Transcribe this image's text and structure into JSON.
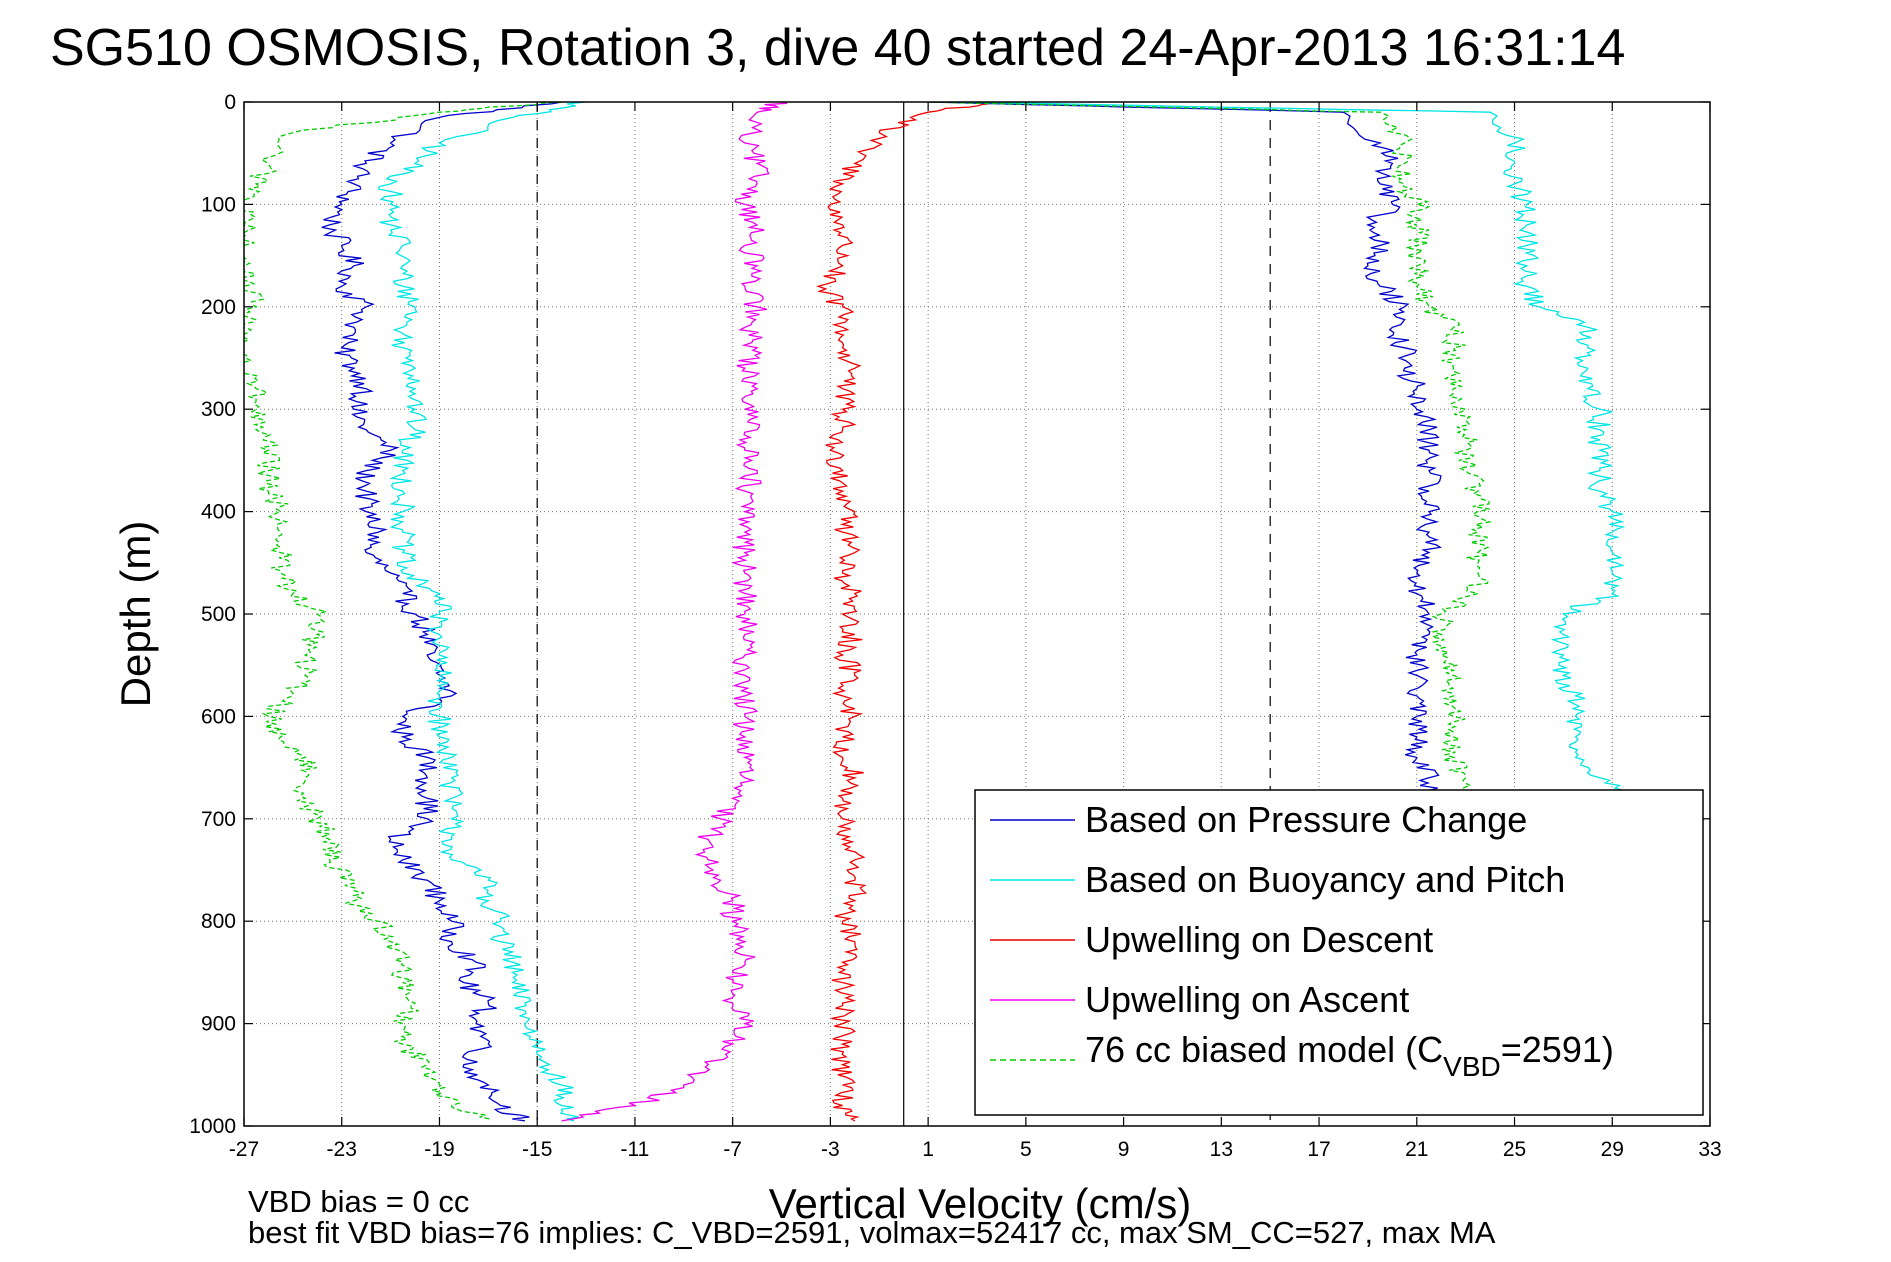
{
  "chart_data": {
    "type": "line",
    "title": "SG510 OSMOSIS, Rotation 3, dive 40 started 24-Apr-2013 16:31:14",
    "xlabel": "Vertical Velocity (cm/s)",
    "ylabel": "Depth (m)",
    "xlim": [
      -27,
      33
    ],
    "ylim": [
      0,
      1000
    ],
    "y_reversed": true,
    "xticks": [
      "-27",
      "-23",
      "-19",
      "-15",
      "-11",
      "-7",
      "-3",
      "1",
      "5",
      "9",
      "13",
      "17",
      "21",
      "25",
      "29",
      "33"
    ],
    "yticks": [
      "0",
      "100",
      "200",
      "300",
      "400",
      "500",
      "600",
      "700",
      "800",
      "900",
      "1000"
    ],
    "grid": "dotted",
    "legend_position": "bottom-right",
    "reference_lines": {
      "dashed_x": [
        -15,
        15
      ],
      "solid_x": [
        0
      ]
    },
    "legend": [
      {
        "label": "Based on Pressure Change",
        "color": "#0000cc",
        "style": "solid"
      },
      {
        "label": "Based on Buoyancy and Pitch",
        "color": "#00e5e5",
        "style": "solid"
      },
      {
        "label": "Upwelling on Descent",
        "color": "#ee0000",
        "style": "solid"
      },
      {
        "label": "Upwelling on Ascent",
        "color": "#ee00ee",
        "style": "solid"
      },
      {
        "label_pre": "76 cc biased model (C",
        "label_sub": "VBD",
        "label_post": "=2591)",
        "color": "#00cc00",
        "style": "dashed"
      }
    ],
    "series": [
      {
        "name": "Based on Pressure Change",
        "branch": "descent",
        "color": "#0000cc",
        "depth": [
          0,
          15,
          40,
          60,
          80,
          100,
          120,
          140,
          160,
          180,
          200,
          220,
          240,
          260,
          280,
          300,
          320,
          340,
          360,
          380,
          400,
          420,
          440,
          460,
          480,
          500,
          520,
          540,
          560,
          580,
          600,
          620,
          640,
          660,
          680,
          700,
          720,
          740,
          760,
          780,
          800,
          820,
          840,
          860,
          880,
          900,
          920,
          940,
          960,
          980,
          995
        ],
        "values": [
          -14,
          -19,
          -21,
          -22,
          -22.5,
          -23,
          -23.5,
          -23,
          -22.5,
          -23,
          -22,
          -22.5,
          -23,
          -22.5,
          -22,
          -22.5,
          -22,
          -21,
          -22,
          -22,
          -22,
          -21.5,
          -22,
          -21,
          -20.5,
          -20,
          -19.5,
          -19.5,
          -19,
          -18.5,
          -20.5,
          -20.5,
          -19.5,
          -19.5,
          -19.5,
          -19.5,
          -21,
          -20.5,
          -19.5,
          -19,
          -18.5,
          -18.5,
          -17.5,
          -18,
          -17,
          -17.5,
          -17,
          -18,
          -17,
          -16.5,
          -15.5
        ]
      },
      {
        "name": "Based on Buoyancy and Pitch",
        "branch": "descent",
        "color": "#00e5e5",
        "depth": [
          0,
          15,
          40,
          60,
          80,
          100,
          120,
          140,
          160,
          180,
          200,
          220,
          240,
          260,
          280,
          300,
          320,
          340,
          360,
          380,
          400,
          420,
          440,
          460,
          480,
          500,
          520,
          540,
          560,
          580,
          600,
          620,
          640,
          660,
          680,
          700,
          720,
          740,
          760,
          780,
          800,
          820,
          840,
          860,
          880,
          900,
          920,
          940,
          960,
          980,
          995
        ],
        "values": [
          -13,
          -16,
          -19,
          -20,
          -21,
          -21,
          -21,
          -20.5,
          -20.5,
          -20.5,
          -20,
          -20.5,
          -20.5,
          -20,
          -20,
          -20,
          -20,
          -20.5,
          -20.5,
          -20.5,
          -20.5,
          -20.5,
          -20.5,
          -20.5,
          -19,
          -19,
          -19,
          -19,
          -19,
          -19,
          -19,
          -19,
          -18.5,
          -18.5,
          -18.5,
          -18.5,
          -18.5,
          -18.5,
          -17,
          -17,
          -16.5,
          -16.5,
          -16,
          -16,
          -15.5,
          -15.5,
          -15,
          -14.5,
          -14,
          -14,
          -13.5
        ]
      },
      {
        "name": "Upwelling on Descent",
        "branch": "descent",
        "color": "#ee0000",
        "depth": [
          0,
          10,
          30,
          60,
          80,
          100,
          120,
          140,
          160,
          180,
          200,
          220,
          240,
          260,
          280,
          300,
          320,
          340,
          360,
          380,
          400,
          420,
          440,
          460,
          480,
          500,
          520,
          540,
          560,
          580,
          600,
          620,
          640,
          660,
          680,
          700,
          720,
          740,
          760,
          780,
          800,
          820,
          840,
          860,
          880,
          900,
          920,
          940,
          960,
          980,
          995
        ],
        "values": [
          4,
          1,
          -1,
          -2,
          -2.5,
          -3,
          -2.5,
          -2.5,
          -2.5,
          -3.5,
          -2.5,
          -2.5,
          -2.5,
          -2,
          -2.5,
          -2.5,
          -2.5,
          -3,
          -2.5,
          -2.5,
          -2,
          -2.5,
          -2,
          -2.5,
          -2,
          -2.5,
          -2,
          -2.5,
          -2,
          -2.5,
          -2,
          -2.5,
          -2.5,
          -2,
          -2.5,
          -2.5,
          -2.5,
          -2,
          -2,
          -2,
          -2.5,
          -2,
          -2.5,
          -2.5,
          -2.5,
          -2.5,
          -2.5,
          -2.5,
          -2.5,
          -2.5,
          -2
        ]
      },
      {
        "name": "Upwelling on Ascent",
        "branch": "ascent",
        "color": "#ee00ee",
        "depth": [
          0,
          10,
          40,
          60,
          80,
          100,
          120,
          140,
          160,
          180,
          200,
          220,
          240,
          260,
          280,
          300,
          320,
          340,
          360,
          380,
          400,
          420,
          440,
          460,
          480,
          500,
          520,
          540,
          560,
          580,
          600,
          620,
          640,
          660,
          680,
          700,
          720,
          740,
          760,
          780,
          800,
          820,
          840,
          860,
          880,
          900,
          920,
          940,
          960,
          980,
          995
        ],
        "values": [
          -5,
          -6,
          -6.5,
          -6,
          -6,
          -6.5,
          -6,
          -6.5,
          -6,
          -6.5,
          -6,
          -6.5,
          -6,
          -6.5,
          -6,
          -6.5,
          -6,
          -6.5,
          -6,
          -6.5,
          -6.5,
          -6.5,
          -6.5,
          -6.5,
          -6.5,
          -6.5,
          -6.5,
          -6.5,
          -6.5,
          -6.5,
          -6.5,
          -6.5,
          -6.5,
          -6.5,
          -7,
          -7.5,
          -8,
          -8,
          -7.5,
          -7,
          -7,
          -6.5,
          -6.5,
          -7,
          -7,
          -6.5,
          -7,
          -8,
          -9,
          -11,
          -14
        ]
      },
      {
        "name": "76 cc biased model (C_VBD=2591)",
        "branch": "descent",
        "color": "#00cc00",
        "style": "dashed",
        "depth": [
          0,
          10,
          30,
          60,
          80,
          100,
          120,
          140,
          160,
          180,
          200,
          220,
          240,
          260,
          280,
          300,
          320,
          340,
          360,
          380,
          400,
          420,
          440,
          460,
          480,
          500,
          520,
          540,
          560,
          580,
          600,
          620,
          640,
          660,
          680,
          700,
          720,
          740,
          760,
          780,
          800,
          820,
          840,
          860,
          880,
          900,
          920,
          940,
          960,
          980,
          995
        ],
        "values": [
          -14,
          -19,
          -25,
          -26,
          -26.5,
          -27,
          -27,
          -27,
          -27,
          -27,
          -26.5,
          -27,
          -27,
          -27,
          -26.5,
          -26.5,
          -26.5,
          -26,
          -26,
          -26,
          -25.5,
          -25.5,
          -25.5,
          -25.5,
          -25,
          -24,
          -24,
          -24.5,
          -24.5,
          -25,
          -26,
          -25.5,
          -24.5,
          -24.5,
          -24.5,
          -24,
          -23.5,
          -23.5,
          -22.5,
          -22.5,
          -21.5,
          -21,
          -20.5,
          -20.5,
          -20,
          -20.5,
          -20.5,
          -19.5,
          -19,
          -18.5,
          -17
        ]
      },
      {
        "name": "Based on Pressure Change",
        "branch": "ascent",
        "color": "#0000cc",
        "depth": [
          0,
          10,
          40,
          60,
          80,
          100,
          120,
          140,
          160,
          180,
          200,
          220,
          240,
          260,
          280,
          300,
          320,
          340,
          360,
          380,
          400,
          420,
          440,
          460,
          480,
          500,
          520,
          540,
          560,
          580,
          600,
          620,
          640,
          660,
          680
        ],
        "values": [
          1,
          18,
          19.5,
          20,
          19.5,
          20,
          19,
          19.5,
          19,
          19.5,
          20.5,
          20,
          20.5,
          20.5,
          21,
          21,
          21.5,
          21.5,
          21.5,
          21.5,
          21.5,
          21.5,
          21.5,
          21,
          21,
          21.5,
          21.5,
          21,
          21,
          21,
          21,
          21,
          21,
          21.5,
          21.5
        ]
      },
      {
        "name": "Based on Buoyancy and Pitch",
        "branch": "ascent",
        "color": "#00e5e5",
        "depth": [
          0,
          10,
          40,
          60,
          80,
          100,
          120,
          140,
          160,
          180,
          200,
          220,
          240,
          260,
          280,
          300,
          320,
          340,
          360,
          380,
          400,
          420,
          440,
          460,
          480,
          500,
          520,
          540,
          560,
          580,
          600,
          620,
          640,
          660,
          680
        ],
        "values": [
          2,
          24,
          25,
          25,
          25,
          25.5,
          25.5,
          25.5,
          25.5,
          25.5,
          26,
          28,
          28,
          28,
          28,
          28.5,
          28.5,
          28.5,
          28.5,
          28.5,
          29,
          29,
          29,
          29,
          29,
          27,
          27,
          27,
          27,
          27.5,
          27.5,
          27.5,
          27.5,
          28.5,
          29.5
        ]
      },
      {
        "name": "76 cc biased model (C_VBD=2591)",
        "branch": "ascent",
        "color": "#00cc00",
        "style": "dashed",
        "depth": [
          0,
          10,
          40,
          60,
          80,
          100,
          120,
          140,
          160,
          180,
          200,
          220,
          240,
          260,
          280,
          300,
          320,
          340,
          360,
          380,
          400,
          420,
          440,
          460,
          480,
          500,
          520,
          540,
          560,
          580,
          600,
          620,
          640,
          660,
          680
        ],
        "values": [
          1,
          19.5,
          20.5,
          20.5,
          20.5,
          21,
          21,
          21,
          21,
          21,
          21.5,
          22.5,
          22.5,
          22.5,
          22.5,
          23,
          23,
          23,
          23,
          23.5,
          23.5,
          23.5,
          23.5,
          23.5,
          23.5,
          22,
          22,
          22,
          22.5,
          22.5,
          22.5,
          22.5,
          22.5,
          23,
          23
        ]
      }
    ]
  },
  "footer": {
    "note_1": "VBD bias = 0 cc",
    "note_2": "best fit VBD bias=76 implies: C_VBD=2591, volmax=52417 cc, max SM_CC=527, max MA"
  }
}
